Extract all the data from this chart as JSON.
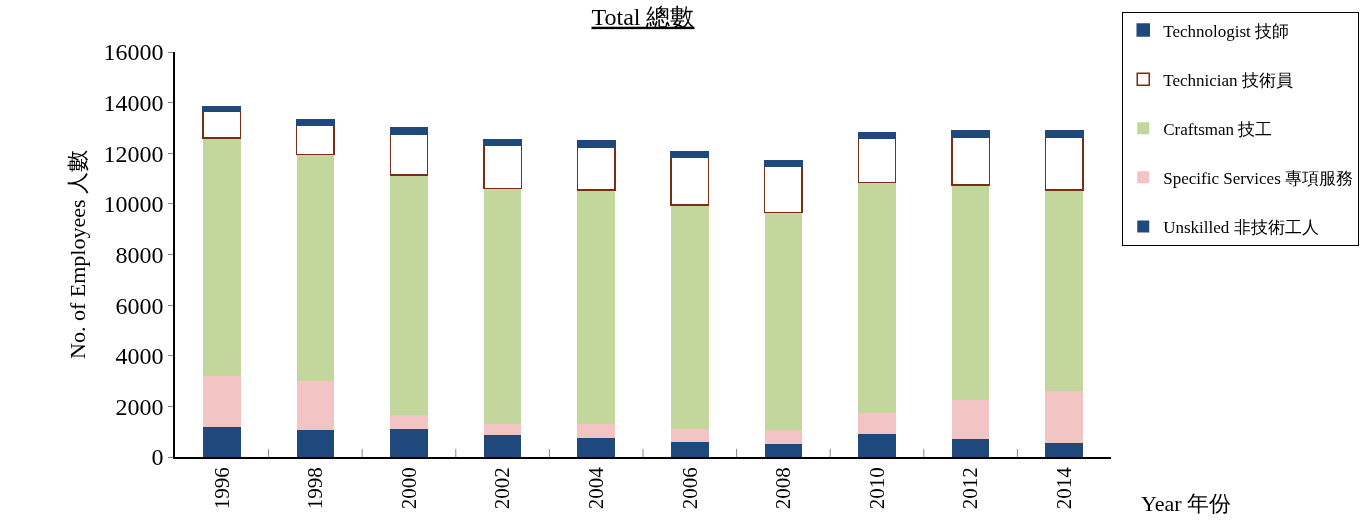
{
  "chart_data": {
    "type": "bar",
    "title": "Total 總數",
    "xlabel": "Year 年份",
    "ylabel": "No. of Employees 人數",
    "stacked": true,
    "legend": "right",
    "grid": false,
    "categories": [
      "1996",
      "1998",
      "2000",
      "2002",
      "2004",
      "2006",
      "2008",
      "2010",
      "2012",
      "2014"
    ],
    "ylim": [
      0,
      16000
    ],
    "yticks": [
      0,
      2000,
      4000,
      6000,
      8000,
      10000,
      12000,
      14000,
      16000
    ],
    "series": [
      {
        "name": "Unskilled 非技術工人",
        "color": "#1f497d",
        "values": [
          1200,
          1050,
          1100,
          850,
          750,
          600,
          500,
          900,
          700,
          550
        ]
      },
      {
        "name": "Specific Services 專項服務",
        "color": "#f2c4c4",
        "values": [
          2000,
          1950,
          550,
          450,
          550,
          500,
          550,
          850,
          1550,
          2050
        ]
      },
      {
        "name": "Craftsman 技工",
        "color": "#c3d69b",
        "values": [
          9400,
          8950,
          9500,
          9300,
          9250,
          8850,
          8600,
          9100,
          8500,
          7950
        ]
      },
      {
        "name": "Technician 技術員",
        "color": "#ffffff",
        "values": [
          1050,
          1150,
          1600,
          1700,
          1700,
          1900,
          1850,
          1750,
          1900,
          2100
        ]
      },
      {
        "name": "Technologist 技師",
        "color": "#1f497d",
        "values": [
          200,
          230,
          250,
          250,
          250,
          220,
          220,
          220,
          230,
          250
        ]
      }
    ]
  }
}
